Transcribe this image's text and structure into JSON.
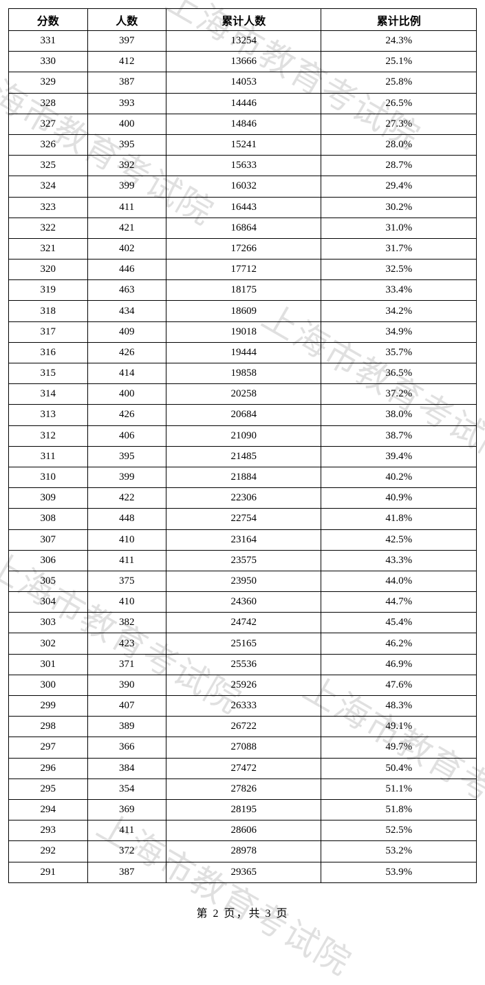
{
  "watermark_text": "上海市教育考试院",
  "table": {
    "type": "table",
    "columns": [
      "分数",
      "人数",
      "累计人数",
      "累计比例"
    ],
    "rows": [
      [
        "331",
        "397",
        "13254",
        "24.3%"
      ],
      [
        "330",
        "412",
        "13666",
        "25.1%"
      ],
      [
        "329",
        "387",
        "14053",
        "25.8%"
      ],
      [
        "328",
        "393",
        "14446",
        "26.5%"
      ],
      [
        "327",
        "400",
        "14846",
        "27.3%"
      ],
      [
        "326",
        "395",
        "15241",
        "28.0%"
      ],
      [
        "325",
        "392",
        "15633",
        "28.7%"
      ],
      [
        "324",
        "399",
        "16032",
        "29.4%"
      ],
      [
        "323",
        "411",
        "16443",
        "30.2%"
      ],
      [
        "322",
        "421",
        "16864",
        "31.0%"
      ],
      [
        "321",
        "402",
        "17266",
        "31.7%"
      ],
      [
        "320",
        "446",
        "17712",
        "32.5%"
      ],
      [
        "319",
        "463",
        "18175",
        "33.4%"
      ],
      [
        "318",
        "434",
        "18609",
        "34.2%"
      ],
      [
        "317",
        "409",
        "19018",
        "34.9%"
      ],
      [
        "316",
        "426",
        "19444",
        "35.7%"
      ],
      [
        "315",
        "414",
        "19858",
        "36.5%"
      ],
      [
        "314",
        "400",
        "20258",
        "37.2%"
      ],
      [
        "313",
        "426",
        "20684",
        "38.0%"
      ],
      [
        "312",
        "406",
        "21090",
        "38.7%"
      ],
      [
        "311",
        "395",
        "21485",
        "39.4%"
      ],
      [
        "310",
        "399",
        "21884",
        "40.2%"
      ],
      [
        "309",
        "422",
        "22306",
        "40.9%"
      ],
      [
        "308",
        "448",
        "22754",
        "41.8%"
      ],
      [
        "307",
        "410",
        "23164",
        "42.5%"
      ],
      [
        "306",
        "411",
        "23575",
        "43.3%"
      ],
      [
        "305",
        "375",
        "23950",
        "44.0%"
      ],
      [
        "304",
        "410",
        "24360",
        "44.7%"
      ],
      [
        "303",
        "382",
        "24742",
        "45.4%"
      ],
      [
        "302",
        "423",
        "25165",
        "46.2%"
      ],
      [
        "301",
        "371",
        "25536",
        "46.9%"
      ],
      [
        "300",
        "390",
        "25926",
        "47.6%"
      ],
      [
        "299",
        "407",
        "26333",
        "48.3%"
      ],
      [
        "298",
        "389",
        "26722",
        "49.1%"
      ],
      [
        "297",
        "366",
        "27088",
        "49.7%"
      ],
      [
        "296",
        "384",
        "27472",
        "50.4%"
      ],
      [
        "295",
        "354",
        "27826",
        "51.1%"
      ],
      [
        "294",
        "369",
        "28195",
        "51.8%"
      ],
      [
        "293",
        "411",
        "28606",
        "52.5%"
      ],
      [
        "292",
        "372",
        "28978",
        "53.2%"
      ],
      [
        "291",
        "387",
        "29365",
        "53.9%"
      ]
    ],
    "border_color": "#000000",
    "border_width": 1.5,
    "header_fontsize": 16,
    "cell_fontsize": 15,
    "row_height": 30.2,
    "background_color": "#ffffff"
  },
  "footer": {
    "page_label": "第 2 页，共 3 页",
    "current": 2,
    "total": 3
  },
  "styling": {
    "watermark_color": "rgba(0,0,0,0.12)",
    "watermark_fontsize": 50,
    "watermark_rotation_deg": 30,
    "font_family": "SimSun"
  }
}
